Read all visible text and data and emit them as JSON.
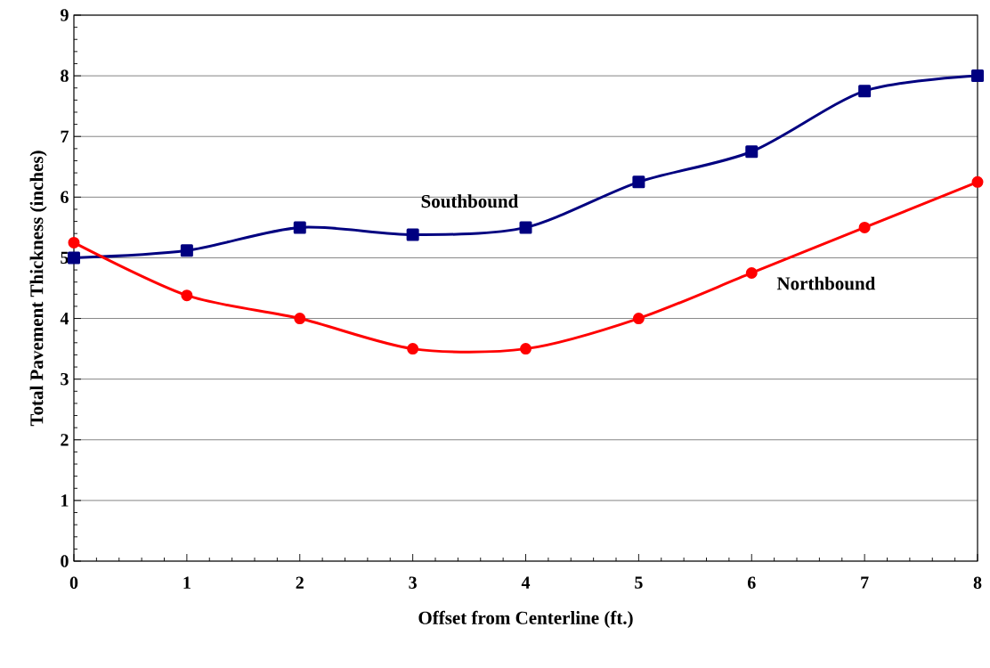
{
  "chart_data": {
    "type": "line",
    "xlabel": "Offset from Centerline (ft.)",
    "ylabel": "Total Pavement Thickness (inches)",
    "x": [
      0,
      1,
      2,
      3,
      4,
      5,
      6,
      7,
      8
    ],
    "series": [
      {
        "name": "Southbound",
        "color": "#000080",
        "marker": "square",
        "values": [
          5.0,
          5.12,
          5.5,
          5.38,
          5.5,
          6.25,
          6.75,
          7.75,
          8.0
        ]
      },
      {
        "name": "Northbound",
        "color": "#ff0000",
        "marker": "circle",
        "values": [
          5.25,
          4.38,
          4.0,
          3.5,
          3.5,
          4.0,
          4.75,
          5.5,
          6.25
        ]
      }
    ],
    "xlim": [
      0,
      8
    ],
    "ylim": [
      0,
      9
    ],
    "xticks": [
      0,
      1,
      2,
      3,
      4,
      5,
      6,
      7,
      8
    ],
    "yticks": [
      0,
      1,
      2,
      3,
      4,
      5,
      6,
      7,
      8,
      9
    ],
    "grid": "y",
    "legend": false,
    "line_style": "solid"
  }
}
